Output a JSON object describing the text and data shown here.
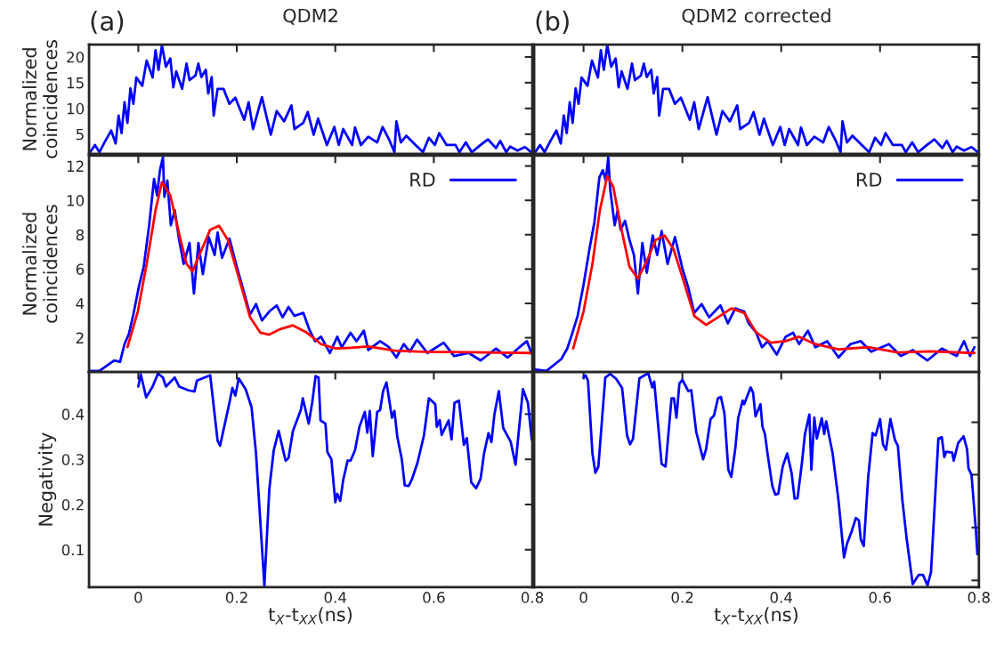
{
  "chart_data": [
    {
      "type": "line",
      "title": "QDM2",
      "annotations": [
        "(a)"
      ],
      "ylabel": "Normalized\ncoincidences",
      "xlim": [
        -0.1,
        0.8
      ],
      "xticks": [
        0,
        0.2,
        0.4,
        0.6,
        0.8
      ],
      "ylim": [
        1.2,
        22.4
      ],
      "yticks": [
        5,
        10,
        15,
        20
      ],
      "tick_labels": "y",
      "grid": false,
      "legend": false,
      "series": [
        {
          "color": "#0000ff",
          "x": [
            -0.1,
            -0.088,
            -0.079,
            -0.067,
            -0.055,
            -0.046,
            -0.04,
            -0.034,
            -0.028,
            -0.022,
            -0.016,
            -0.01,
            -0.004,
            0.008,
            0.017,
            0.029,
            0.035,
            0.041,
            0.048,
            0.056,
            0.065,
            0.071,
            0.077,
            0.089,
            0.098,
            0.104,
            0.116,
            0.122,
            0.128,
            0.137,
            0.142,
            0.149,
            0.153,
            0.161,
            0.173,
            0.185,
            0.197,
            0.215,
            0.224,
            0.233,
            0.251,
            0.269,
            0.281,
            0.296,
            0.311,
            0.317,
            0.335,
            0.344,
            0.356,
            0.365,
            0.383,
            0.398,
            0.407,
            0.416,
            0.434,
            0.44,
            0.452,
            0.467,
            0.485,
            0.496,
            0.509,
            0.52,
            0.524,
            0.533,
            0.544,
            0.563,
            0.578,
            0.59,
            0.602,
            0.611,
            0.626,
            0.644,
            0.652,
            0.665,
            0.677,
            0.695,
            0.71,
            0.726,
            0.735,
            0.747,
            0.755,
            0.77,
            0.785,
            0.798
          ],
          "values": [
            1.2,
            2.9,
            1.5,
            3.7,
            5.7,
            3.2,
            8.6,
            5.2,
            11.2,
            7.2,
            13.9,
            10.9,
            16.0,
            14.4,
            19.3,
            16.0,
            21.3,
            17.5,
            22.3,
            18.1,
            19.7,
            14.1,
            17.2,
            13.8,
            18.7,
            15.5,
            16.4,
            18.7,
            16.1,
            17.5,
            12.9,
            16.1,
            8.6,
            13.8,
            13.8,
            10.9,
            12.1,
            7.8,
            11.2,
            6.0,
            12.2,
            4.9,
            9.5,
            7.5,
            10.6,
            6.0,
            7.2,
            9.3,
            4.9,
            8.0,
            2.9,
            6.4,
            2.9,
            6.0,
            2.9,
            6.3,
            2.9,
            4.5,
            3.4,
            6.4,
            4.0,
            1.5,
            7.5,
            3.4,
            4.7,
            2.9,
            1.5,
            4.3,
            2.9,
            5.2,
            2.9,
            2.9,
            1.5,
            3.4,
            1.5,
            2.9,
            4.0,
            2.3,
            3.7,
            1.5,
            2.6,
            1.8,
            2.5,
            1.5
          ]
        }
      ]
    },
    {
      "type": "line",
      "title": "QDM2 corrected",
      "annotations": [
        "(b)"
      ],
      "xlim": [
        -0.1,
        0.8
      ],
      "xticks": [
        0,
        0.2,
        0.4,
        0.6,
        0.8
      ],
      "ylim": [
        1.2,
        22.4
      ],
      "yticks": [
        5,
        10,
        15,
        20
      ],
      "tick_labels": false,
      "grid": false,
      "legend": false,
      "series": [
        {
          "color": "#0000ff",
          "x": [
            -0.1,
            -0.088,
            -0.079,
            -0.067,
            -0.055,
            -0.046,
            -0.04,
            -0.034,
            -0.028,
            -0.022,
            -0.016,
            -0.01,
            -0.004,
            0.008,
            0.017,
            0.029,
            0.035,
            0.041,
            0.048,
            0.056,
            0.065,
            0.071,
            0.077,
            0.089,
            0.098,
            0.104,
            0.116,
            0.122,
            0.128,
            0.137,
            0.142,
            0.149,
            0.153,
            0.161,
            0.173,
            0.185,
            0.197,
            0.215,
            0.224,
            0.233,
            0.251,
            0.269,
            0.281,
            0.296,
            0.311,
            0.317,
            0.335,
            0.344,
            0.356,
            0.365,
            0.383,
            0.398,
            0.407,
            0.416,
            0.434,
            0.44,
            0.452,
            0.467,
            0.485,
            0.496,
            0.509,
            0.52,
            0.524,
            0.533,
            0.544,
            0.563,
            0.578,
            0.59,
            0.602,
            0.611,
            0.626,
            0.644,
            0.652,
            0.665,
            0.677,
            0.695,
            0.71,
            0.726,
            0.735,
            0.747,
            0.755,
            0.77,
            0.785,
            0.798
          ],
          "values": [
            1.2,
            2.9,
            1.5,
            3.7,
            5.7,
            3.2,
            8.6,
            5.2,
            11.2,
            7.2,
            13.9,
            10.9,
            16.0,
            14.4,
            19.3,
            16.0,
            21.3,
            17.5,
            22.3,
            18.1,
            19.7,
            14.1,
            17.2,
            13.8,
            18.7,
            15.5,
            16.4,
            18.7,
            16.1,
            17.5,
            12.9,
            16.1,
            8.6,
            13.8,
            13.8,
            10.9,
            12.1,
            7.8,
            11.2,
            6.0,
            12.2,
            4.9,
            9.5,
            7.5,
            10.6,
            6.0,
            7.2,
            9.3,
            4.9,
            8.0,
            2.9,
            6.4,
            2.9,
            6.0,
            2.9,
            6.3,
            2.9,
            4.5,
            3.4,
            6.4,
            4.0,
            1.5,
            7.5,
            3.4,
            4.7,
            2.9,
            1.5,
            4.3,
            2.9,
            5.2,
            2.9,
            2.9,
            1.5,
            3.4,
            1.5,
            2.9,
            4.0,
            2.3,
            3.7,
            1.5,
            2.6,
            1.8,
            2.5,
            1.5
          ]
        }
      ]
    },
    {
      "type": "line",
      "ylabel": "Normalized\ncoincidences",
      "xlim": [
        -0.1,
        0.8
      ],
      "xticks": [
        0,
        0.2,
        0.4,
        0.6,
        0.8
      ],
      "ylim": [
        0,
        12.6
      ],
      "yticks": [
        2,
        4,
        6,
        8,
        10,
        12
      ],
      "tick_labels": "y",
      "grid": false,
      "legend": "top right",
      "series": [
        {
          "name": "RD",
          "color": "#0000ff",
          "x": [
            -0.1,
            -0.079,
            -0.049,
            -0.037,
            -0.028,
            -0.019,
            -0.01,
            0.002,
            0.011,
            0.022,
            0.032,
            0.038,
            0.044,
            0.05,
            0.053,
            0.059,
            0.066,
            0.074,
            0.083,
            0.092,
            0.104,
            0.113,
            0.122,
            0.131,
            0.143,
            0.155,
            0.161,
            0.17,
            0.185,
            0.2,
            0.212,
            0.227,
            0.239,
            0.251,
            0.266,
            0.281,
            0.293,
            0.305,
            0.317,
            0.335,
            0.347,
            0.359,
            0.371,
            0.389,
            0.404,
            0.413,
            0.431,
            0.443,
            0.458,
            0.467,
            0.491,
            0.509,
            0.524,
            0.539,
            0.551,
            0.566,
            0.587,
            0.62,
            0.641,
            0.671,
            0.695,
            0.726,
            0.75,
            0.774,
            0.789,
            0.798
          ],
          "values": [
            0.07,
            0.07,
            0.68,
            0.6,
            1.63,
            2.23,
            3.36,
            5.09,
            6.13,
            8.55,
            11.24,
            10.29,
            11.76,
            12.5,
            10.2,
            11.15,
            8.55,
            9.42,
            7.69,
            6.3,
            7.52,
            4.57,
            7.52,
            5.7,
            7.86,
            6.82,
            8.12,
            6.65,
            7.77,
            6.13,
            4.91,
            3.36,
            3.96,
            3.01,
            3.53,
            3.88,
            3.19,
            3.79,
            3.27,
            3.45,
            2.49,
            1.8,
            2.06,
            1.11,
            2.06,
            1.45,
            2.29,
            1.8,
            2.41,
            1.28,
            1.8,
            1.45,
            0.85,
            1.63,
            1.19,
            1.89,
            1.11,
            1.71,
            0.94,
            1.11,
            0.68,
            1.37,
            0.85,
            1.45,
            1.8,
            1.11
          ]
        },
        {
          "color": "#ff0000",
          "x": [
            -0.022,
            -0.001,
            0.017,
            0.035,
            0.048,
            0.065,
            0.083,
            0.098,
            0.11,
            0.128,
            0.146,
            0.164,
            0.182,
            0.203,
            0.227,
            0.248,
            0.266,
            0.287,
            0.314,
            0.341,
            0.371,
            0.401,
            0.431,
            0.467,
            0.521,
            0.581,
            0.671,
            0.798
          ],
          "values": [
            1.45,
            3.53,
            6.3,
            9.42,
            11.06,
            10.29,
            8.03,
            6.3,
            5.87,
            7.08,
            8.29,
            8.52,
            7.69,
            5.61,
            3.19,
            2.29,
            2.18,
            2.49,
            2.72,
            2.32,
            1.63,
            1.37,
            1.42,
            1.49,
            1.25,
            1.18,
            1.16,
            1.11
          ]
        }
      ]
    },
    {
      "type": "line",
      "xlim": [
        -0.1,
        0.8
      ],
      "xticks": [
        0,
        0.2,
        0.4,
        0.6,
        0.8
      ],
      "ylim": [
        0,
        12.6
      ],
      "yticks": [
        2,
        4,
        6,
        8,
        10,
        12
      ],
      "tick_labels": false,
      "grid": false,
      "legend": "top right",
      "series": [
        {
          "name": "RD",
          "color": "#0000ff",
          "x": [
            -0.1,
            -0.075,
            -0.045,
            -0.033,
            -0.024,
            -0.012,
            0.0,
            0.012,
            0.022,
            0.032,
            0.039,
            0.045,
            0.05,
            0.054,
            0.063,
            0.069,
            0.075,
            0.084,
            0.093,
            0.102,
            0.11,
            0.119,
            0.128,
            0.14,
            0.149,
            0.158,
            0.17,
            0.185,
            0.2,
            0.212,
            0.224,
            0.239,
            0.254,
            0.277,
            0.292,
            0.307,
            0.325,
            0.334,
            0.349,
            0.361,
            0.373,
            0.391,
            0.409,
            0.424,
            0.436,
            0.454,
            0.469,
            0.493,
            0.516,
            0.54,
            0.561,
            0.582,
            0.618,
            0.642,
            0.666,
            0.696,
            0.725,
            0.755,
            0.77,
            0.782,
            0.791
          ],
          "values": [
            0.16,
            0.07,
            0.76,
            1.37,
            2.15,
            3.27,
            5.09,
            7.17,
            8.73,
            11.32,
            11.76,
            11.15,
            12.5,
            10.63,
            8.55,
            9.42,
            8.29,
            8.81,
            7.69,
            6.82,
            4.57,
            7.52,
            5.78,
            7.95,
            6.82,
            8.21,
            6.3,
            7.86,
            6.04,
            4.91,
            3.45,
            3.96,
            3.19,
            3.88,
            2.84,
            3.71,
            3.53,
            2.84,
            2.32,
            1.45,
            1.8,
            1.02,
            2.06,
            2.29,
            1.63,
            2.41,
            1.45,
            1.8,
            0.85,
            1.63,
            1.8,
            1.19,
            1.63,
            0.94,
            1.28,
            0.68,
            1.37,
            0.94,
            1.8,
            0.94,
            1.45
          ]
        },
        {
          "color": "#ff0000",
          "x": [
            -0.021,
            0.0,
            0.018,
            0.033,
            0.048,
            0.06,
            0.075,
            0.093,
            0.11,
            0.128,
            0.146,
            0.164,
            0.182,
            0.203,
            0.224,
            0.248,
            0.272,
            0.299,
            0.325,
            0.349,
            0.379,
            0.409,
            0.436,
            0.469,
            0.516,
            0.576,
            0.636,
            0.701,
            0.791
          ],
          "values": [
            1.37,
            3.53,
            6.3,
            9.42,
            11.41,
            10.8,
            8.55,
            6.13,
            5.44,
            6.47,
            7.69,
            7.95,
            7.17,
            5.26,
            3.27,
            2.75,
            3.19,
            3.71,
            3.45,
            2.32,
            1.71,
            1.8,
            2.06,
            1.63,
            1.32,
            1.45,
            1.14,
            1.21,
            1.11
          ]
        }
      ]
    },
    {
      "type": "line",
      "ylabel": "Negativity",
      "xlabel": "t$_{X}$-t$_{XX}$(ns)",
      "xlim": [
        -0.1,
        0.8
      ],
      "xticks": [
        0,
        0.2,
        0.4,
        0.6,
        0.8
      ],
      "ylim": [
        0.017,
        0.493
      ],
      "yticks": [
        0.1,
        0.2,
        0.3,
        0.4
      ],
      "grid": false,
      "legend": false,
      "series": [
        {
          "color": "#0000ff",
          "x": [
            0.0,
            0.005,
            0.016,
            0.029,
            0.04,
            0.05,
            0.056,
            0.074,
            0.083,
            0.101,
            0.114,
            0.119,
            0.146,
            0.161,
            0.166,
            0.185,
            0.191,
            0.197,
            0.204,
            0.218,
            0.23,
            0.239,
            0.256,
            0.266,
            0.275,
            0.285,
            0.299,
            0.305,
            0.314,
            0.33,
            0.334,
            0.346,
            0.353,
            0.36,
            0.366,
            0.37,
            0.38,
            0.384,
            0.392,
            0.4,
            0.404,
            0.41,
            0.416,
            0.425,
            0.431,
            0.44,
            0.449,
            0.46,
            0.465,
            0.47,
            0.476,
            0.485,
            0.491,
            0.497,
            0.504,
            0.515,
            0.52,
            0.526,
            0.535,
            0.541,
            0.549,
            0.556,
            0.567,
            0.58,
            0.59,
            0.603,
            0.606,
            0.612,
            0.616,
            0.63,
            0.636,
            0.642,
            0.651,
            0.661,
            0.667,
            0.676,
            0.686,
            0.695,
            0.702,
            0.711,
            0.717,
            0.723,
            0.732,
            0.741,
            0.756,
            0.766,
            0.772,
            0.781,
            0.791,
            0.799
          ],
          "values": [
            0.461,
            0.488,
            0.437,
            0.461,
            0.49,
            0.481,
            0.461,
            0.481,
            0.461,
            0.453,
            0.45,
            0.474,
            0.486,
            0.341,
            0.33,
            0.425,
            0.458,
            0.441,
            0.479,
            0.455,
            0.415,
            0.313,
            0.02,
            0.234,
            0.32,
            0.363,
            0.297,
            0.303,
            0.363,
            0.409,
            0.435,
            0.379,
            0.425,
            0.484,
            0.481,
            0.386,
            0.379,
            0.316,
            0.3,
            0.205,
            0.224,
            0.208,
            0.254,
            0.297,
            0.297,
            0.32,
            0.372,
            0.405,
            0.359,
            0.407,
            0.307,
            0.405,
            0.409,
            0.451,
            0.47,
            0.392,
            0.407,
            0.349,
            0.3,
            0.242,
            0.241,
            0.257,
            0.293,
            0.353,
            0.435,
            0.422,
            0.372,
            0.387,
            0.354,
            0.386,
            0.344,
            0.425,
            0.43,
            0.332,
            0.347,
            0.249,
            0.236,
            0.257,
            0.313,
            0.358,
            0.338,
            0.399,
            0.451,
            0.369,
            0.339,
            0.288,
            0.356,
            0.455,
            0.425,
            0.343
          ]
        }
      ]
    },
    {
      "type": "line",
      "xlabel": "t$_{X}$-t$_{XX}$(ns)",
      "xlim": [
        -0.1,
        0.8
      ],
      "xticks": [
        0,
        0.2,
        0.4,
        0.6,
        0.8
      ],
      "ylim": [
        0.017,
        0.493
      ],
      "yticks": [
        {
          "value": 0.382,
          "label": null
        },
        {
          "value": 0.266,
          "label": null
        },
        {
          "value": 0.149,
          "label": null
        },
        {
          "value": 0.032,
          "label": null
        }
      ],
      "tick_labels": "x",
      "grid": false,
      "legend": false,
      "series": [
        {
          "color": "#0000ff",
          "x": [
            0.0,
            0.004,
            0.009,
            0.018,
            0.024,
            0.03,
            0.044,
            0.054,
            0.066,
            0.078,
            0.088,
            0.094,
            0.1,
            0.113,
            0.125,
            0.131,
            0.139,
            0.143,
            0.158,
            0.166,
            0.178,
            0.183,
            0.188,
            0.194,
            0.2,
            0.212,
            0.218,
            0.228,
            0.242,
            0.248,
            0.257,
            0.264,
            0.272,
            0.278,
            0.285,
            0.293,
            0.299,
            0.307,
            0.313,
            0.322,
            0.325,
            0.338,
            0.343,
            0.348,
            0.358,
            0.362,
            0.367,
            0.373,
            0.382,
            0.388,
            0.394,
            0.403,
            0.412,
            0.421,
            0.427,
            0.433,
            0.442,
            0.448,
            0.457,
            0.461,
            0.467,
            0.472,
            0.482,
            0.487,
            0.491,
            0.504,
            0.516,
            0.527,
            0.533,
            0.542,
            0.551,
            0.557,
            0.561,
            0.567,
            0.576,
            0.585,
            0.591,
            0.6,
            0.606,
            0.612,
            0.621,
            0.63,
            0.636,
            0.645,
            0.654,
            0.666,
            0.678,
            0.687,
            0.696,
            0.703,
            0.718,
            0.725,
            0.73,
            0.734,
            0.746,
            0.749,
            0.758,
            0.769,
            0.776,
            0.779,
            0.785,
            0.794,
            0.797
          ],
          "values": [
            0.481,
            0.486,
            0.474,
            0.313,
            0.27,
            0.284,
            0.481,
            0.489,
            0.478,
            0.458,
            0.353,
            0.333,
            0.345,
            0.479,
            0.487,
            0.49,
            0.459,
            0.472,
            0.29,
            0.284,
            0.435,
            0.435,
            0.392,
            0.468,
            0.476,
            0.451,
            0.453,
            0.361,
            0.3,
            0.323,
            0.389,
            0.397,
            0.435,
            0.438,
            0.402,
            0.277,
            0.261,
            0.323,
            0.392,
            0.43,
            0.422,
            0.459,
            0.448,
            0.395,
            0.422,
            0.372,
            0.356,
            0.307,
            0.241,
            0.222,
            0.224,
            0.284,
            0.313,
            0.27,
            0.213,
            0.214,
            0.293,
            0.356,
            0.399,
            0.277,
            0.392,
            0.346,
            0.391,
            0.356,
            0.384,
            0.313,
            0.208,
            0.083,
            0.113,
            0.139,
            0.17,
            0.165,
            0.123,
            0.108,
            0.261,
            0.358,
            0.353,
            0.389,
            0.333,
            0.321,
            0.389,
            0.343,
            0.33,
            0.211,
            0.123,
            0.024,
            0.044,
            0.044,
            0.021,
            0.05,
            0.346,
            0.349,
            0.305,
            0.317,
            0.315,
            0.297,
            0.336,
            0.351,
            0.323,
            0.28,
            0.266,
            0.142,
            0.09
          ]
        }
      ]
    }
  ]
}
